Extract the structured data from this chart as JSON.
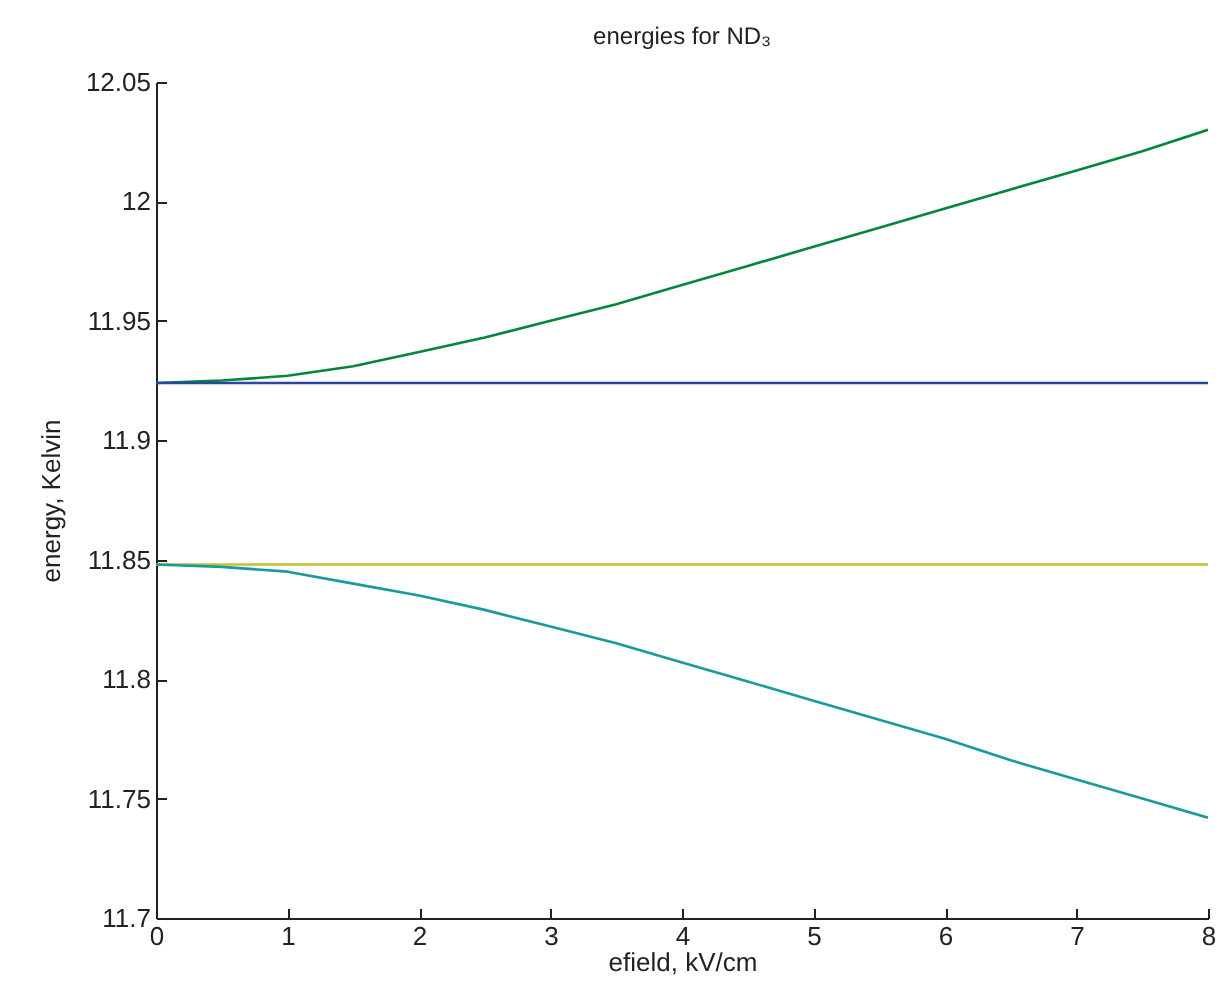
{
  "chart_data": {
    "type": "line",
    "title": "energies for ND₃",
    "xlabel": "efield, kV/cm",
    "ylabel": "energy, Kelvin",
    "x": [
      0,
      0.5,
      1,
      1.5,
      2,
      2.5,
      3,
      3.5,
      4,
      4.5,
      5,
      5.5,
      6,
      6.5,
      7,
      7.5,
      8
    ],
    "series": [
      {
        "color": "#00873a",
        "values": [
          11.924,
          11.925,
          11.927,
          11.931,
          11.937,
          11.943,
          11.95,
          11.957,
          11.965,
          11.973,
          11.981,
          11.989,
          11.997,
          12.005,
          12.013,
          12.021,
          12.03
        ]
      },
      {
        "color": "#2b45a0",
        "values": [
          11.924,
          11.924,
          11.924,
          11.924,
          11.924,
          11.924,
          11.924,
          11.924,
          11.924,
          11.924,
          11.924,
          11.924,
          11.924,
          11.924,
          11.924,
          11.924,
          11.924
        ]
      },
      {
        "color": "#c8c030",
        "values": [
          11.848,
          11.848,
          11.848,
          11.848,
          11.848,
          11.848,
          11.848,
          11.848,
          11.848,
          11.848,
          11.848,
          11.848,
          11.848,
          11.848,
          11.848,
          11.848,
          11.848
        ]
      },
      {
        "color": "#1a9a9a",
        "values": [
          11.848,
          11.847,
          11.845,
          11.84,
          11.835,
          11.829,
          11.822,
          11.815,
          11.807,
          11.799,
          11.791,
          11.783,
          11.775,
          11.766,
          11.758,
          11.75,
          11.742
        ]
      }
    ],
    "xlim": [
      0,
      8
    ],
    "xticks": [
      0,
      1,
      2,
      3,
      4,
      5,
      6,
      7,
      8
    ],
    "ylim": [
      11.7,
      12.05
    ],
    "yticks": [
      11.7,
      11.75,
      11.8,
      11.85,
      11.9,
      11.95,
      12,
      12.05
    ],
    "grid": false
  }
}
